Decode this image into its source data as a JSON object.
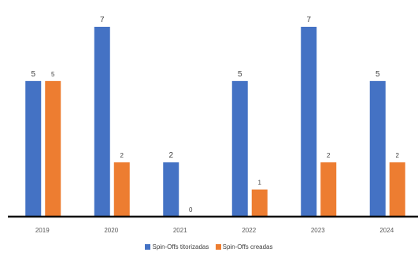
{
  "chart_data": {
    "type": "bar",
    "categories": [
      "2019",
      "2020",
      "2021",
      "2022",
      "2023",
      "2024"
    ],
    "series": [
      {
        "name": "Spin-Offs titorizadas",
        "values": [
          5,
          7,
          2,
          5,
          7,
          5
        ],
        "color": "#4472C4"
      },
      {
        "name": "Spin-Offs creadas",
        "values": [
          5,
          2,
          0,
          1,
          2,
          2
        ],
        "color": "#ED7D31"
      }
    ],
    "ylim": [
      0,
      7
    ],
    "grid": false,
    "legend_position": "bottom"
  }
}
